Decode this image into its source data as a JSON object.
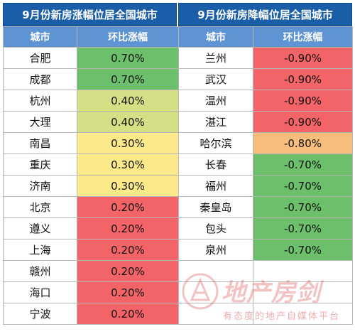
{
  "titles": {
    "left": "9月份新房涨幅位居全国城市",
    "right": "9月份新房降幅位居全国城市"
  },
  "headers": {
    "left_city": "城市",
    "left_change": "环比涨幅",
    "right_city": "城市",
    "right_change": "环比涨幅"
  },
  "colors": {
    "green": "#6cc06b",
    "yellow_green": "#d7df86",
    "yellow": "#fce98a",
    "red": "#f26468",
    "orange": "#f7bd7b"
  },
  "rise": [
    {
      "city": "合肥",
      "change": "0.70%",
      "color": "green"
    },
    {
      "city": "成都",
      "change": "0.70%",
      "color": "green"
    },
    {
      "city": "杭州",
      "change": "0.40%",
      "color": "yellow_green"
    },
    {
      "city": "大理",
      "change": "0.40%",
      "color": "yellow_green"
    },
    {
      "city": "南昌",
      "change": "0.30%",
      "color": "yellow"
    },
    {
      "city": "重庆",
      "change": "0.30%",
      "color": "yellow"
    },
    {
      "city": "济南",
      "change": "0.30%",
      "color": "yellow"
    },
    {
      "city": "北京",
      "change": "0.20%",
      "color": "red"
    },
    {
      "city": "遵义",
      "change": "0.20%",
      "color": "red"
    },
    {
      "city": "上海",
      "change": "0.20%",
      "color": "red"
    },
    {
      "city": "赣州",
      "change": "0.20%",
      "color": "red"
    },
    {
      "city": "海口",
      "change": "0.20%",
      "color": "red"
    },
    {
      "city": "宁波",
      "change": "0.20%",
      "color": "red"
    }
  ],
  "fall": [
    {
      "city": "兰州",
      "change": "-0.90%",
      "color": "red"
    },
    {
      "city": "武汉",
      "change": "-0.90%",
      "color": "red"
    },
    {
      "city": "温州",
      "change": "-0.90%",
      "color": "red"
    },
    {
      "city": "湛江",
      "change": "-0.90%",
      "color": "red"
    },
    {
      "city": "哈尔滨",
      "change": "-0.80%",
      "color": "orange"
    },
    {
      "city": "长春",
      "change": "-0.70%",
      "color": "green"
    },
    {
      "city": "福州",
      "change": "-0.70%",
      "color": "green"
    },
    {
      "city": "秦皇岛",
      "change": "-0.70%",
      "color": "green"
    },
    {
      "city": "包头",
      "change": "-0.70%",
      "color": "green"
    },
    {
      "city": "泉州",
      "change": "-0.70%",
      "color": "green"
    }
  ],
  "watermark": {
    "brand": "地产房剑",
    "slogan": "有态度的地产自媒体平台"
  }
}
